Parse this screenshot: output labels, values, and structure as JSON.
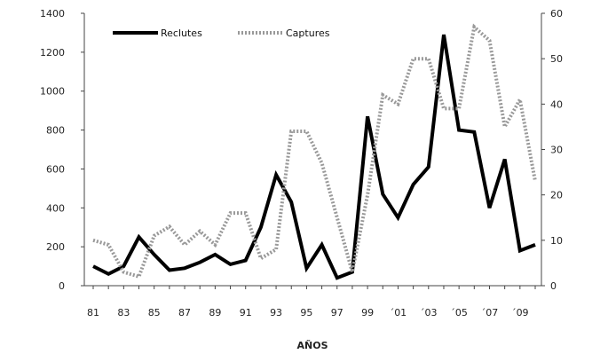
{
  "chart_data": {
    "type": "line",
    "title": "",
    "xlabel": "AÑOS",
    "ylabel_left": "",
    "ylabel_right": "",
    "x": [
      1981,
      1982,
      1983,
      1984,
      1985,
      1986,
      1987,
      1988,
      1989,
      1990,
      1991,
      1992,
      1993,
      1994,
      1995,
      1996,
      1997,
      1998,
      1999,
      2000,
      2001,
      2002,
      2003,
      2004,
      2005,
      2006,
      2007,
      2008,
      2009,
      2010
    ],
    "x_tick_labels": [
      "81",
      "83",
      "85",
      "87",
      "89",
      "91",
      "93",
      "95",
      "97",
      "99",
      "´01",
      "´03",
      "´05",
      "´07",
      "´09"
    ],
    "x_tick_years": [
      1981,
      1983,
      1985,
      1987,
      1989,
      1991,
      1993,
      1995,
      1997,
      1999,
      2001,
      2003,
      2005,
      2007,
      2009
    ],
    "y_left_ticks": [
      "0",
      "200",
      "400",
      "600",
      "800",
      "1000",
      "1200",
      "1400"
    ],
    "y_left_lim": [
      0,
      1400
    ],
    "y_right_ticks": [
      "0",
      "10",
      "20",
      "30",
      "40",
      "50",
      "60"
    ],
    "y_right_lim": [
      0,
      60
    ],
    "series": [
      {
        "name": "Reclutes",
        "axis": "left",
        "color": "#000000",
        "style": "solid",
        "values": [
          100,
          60,
          100,
          250,
          160,
          80,
          90,
          120,
          160,
          110,
          130,
          300,
          570,
          430,
          90,
          210,
          40,
          70,
          870,
          470,
          350,
          520,
          610,
          1290,
          800,
          790,
          400,
          650,
          180,
          210
        ]
      },
      {
        "name": "Captures",
        "axis": "right",
        "color": "#999999",
        "style": "dashed",
        "values": [
          10,
          9,
          3,
          2,
          11,
          13,
          9,
          12,
          9,
          16,
          16,
          6,
          8,
          34,
          34,
          27,
          15,
          3,
          20,
          42,
          40,
          50,
          50,
          39,
          39,
          57,
          54,
          35,
          41,
          23
        ]
      }
    ],
    "legend": "top-left",
    "grid": false
  }
}
